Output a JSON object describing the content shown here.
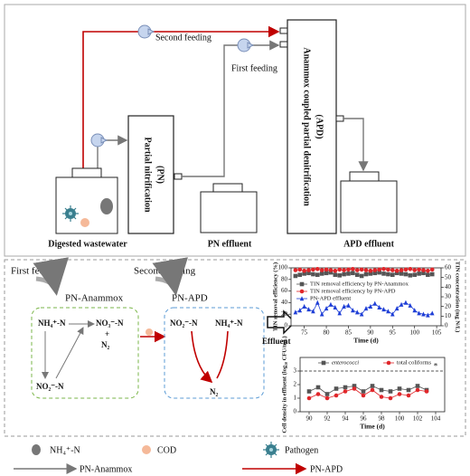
{
  "diagram": {
    "top": {
      "wastewater_label": "Digested wastewater",
      "pn_reactor": [
        "Partial nitrification",
        "(PN)"
      ],
      "pn_effluent": "PN effluent",
      "apd_reactor": [
        "Anammox coupled partial denitrification",
        "(APD)"
      ],
      "apd_effluent": "APD effluent",
      "second_feeding": "Second feeding",
      "first_feeding": "First feeding"
    },
    "bottom": {
      "first_feeding": "First feeding",
      "pn_anammox": "PN-Anammox",
      "second_feeding": "Second feeding",
      "pn_apd": "PN-APD",
      "effluent": "Effluent",
      "nodes": {
        "nh4_1": "NH₄⁺-N",
        "no3": "NO₃⁻-N",
        "plus": "+",
        "n2_1": "N₂",
        "no2_1": "NO₂⁻-N",
        "no2_2": "NO₂⁻-N",
        "nh4_2": "NH₄⁺-N",
        "n2_2": "N₂"
      }
    },
    "legend": {
      "nh4": "NH₄⁺-N",
      "cod": "COD",
      "pathogen": "Pathogen",
      "pn_anammox": "PN-Anammox",
      "pn_apd": "PN-APD"
    }
  },
  "chart_data": [
    {
      "type": "line",
      "xlabel": "Time (d)",
      "ylabel": "TIN removal efficiency (%)",
      "y2label": "TIN concentration (mg N/L)",
      "x": [
        73,
        74,
        75,
        76,
        77,
        78,
        79,
        80,
        81,
        82,
        83,
        84,
        85,
        86,
        87,
        88,
        89,
        90,
        91,
        92,
        93,
        94,
        95,
        96,
        97,
        98,
        99,
        100,
        101,
        102,
        103,
        104
      ],
      "xlim": [
        72,
        106
      ],
      "xticks": [
        75,
        80,
        85,
        90,
        95,
        100,
        105
      ],
      "ylim": [
        0,
        100
      ],
      "yticks": [
        0,
        20,
        40,
        60,
        80,
        100
      ],
      "y2lim": [
        0,
        60
      ],
      "y2ticks": [
        0,
        10,
        20,
        30,
        40,
        50,
        60
      ],
      "legend": "center left",
      "series": [
        {
          "name": "TIN removal efficiency by PN-Anammox",
          "color": "#555555",
          "marker": "square",
          "values": [
            86,
            88,
            90,
            91,
            89,
            88,
            90,
            91,
            92,
            88,
            87,
            89,
            90,
            91,
            88,
            86,
            89,
            90,
            91,
            92,
            90,
            89,
            88,
            91,
            90,
            89,
            87,
            88,
            90,
            91,
            88,
            89
          ]
        },
        {
          "name": "TIN removal efficiency by PN-APD",
          "color": "#e0262a",
          "marker": "circle",
          "values": [
            96,
            97,
            95,
            96,
            97,
            98,
            96,
            97,
            96,
            95,
            97,
            96,
            97,
            98,
            96,
            97,
            96,
            95,
            96,
            97,
            98,
            97,
            96,
            95,
            96,
            97,
            98,
            96,
            97,
            96,
            95,
            97
          ]
        },
        {
          "name": "PN-APD effluent",
          "color": "#1f3fd6",
          "marker": "triangle",
          "axis": "y2",
          "values": [
            14,
            16,
            20,
            17,
            15,
            24,
            12,
            18,
            22,
            19,
            13,
            20,
            21,
            16,
            14,
            12,
            18,
            20,
            23,
            19,
            17,
            15,
            12,
            18,
            22,
            24,
            21,
            16,
            13,
            12,
            11,
            13
          ]
        }
      ]
    },
    {
      "type": "line",
      "xlabel": "Time (d)",
      "ylabel": "Cell density in effluent (log₁₀ CFU/mL)",
      "x": [
        90,
        91,
        92,
        93,
        94,
        95,
        96,
        97,
        98,
        99,
        100,
        101,
        102,
        103
      ],
      "xlim": [
        89,
        105
      ],
      "xticks": [
        90,
        92,
        94,
        96,
        98,
        100,
        102,
        104
      ],
      "ylim": [
        0,
        4
      ],
      "yticks": [
        0,
        1,
        2,
        3
      ],
      "hline": 3,
      "legend": "upper center",
      "annotations": [
        {
          "text": "*",
          "x": 104,
          "y": 3.3
        }
      ],
      "series": [
        {
          "name": "enterococci",
          "color": "#555555",
          "marker": "square",
          "values": [
            1.5,
            1.8,
            1.3,
            1.7,
            1.8,
            1.9,
            1.5,
            1.9,
            1.6,
            1.5,
            1.7,
            1.6,
            1.9,
            1.6
          ]
        },
        {
          "name": "total coliforms",
          "color": "#e0262a",
          "marker": "circle",
          "values": [
            1.0,
            1.3,
            1.0,
            1.2,
            1.5,
            1.7,
            1.2,
            1.6,
            1.1,
            1.0,
            1.3,
            1.2,
            1.6,
            1.5
          ]
        }
      ]
    }
  ]
}
